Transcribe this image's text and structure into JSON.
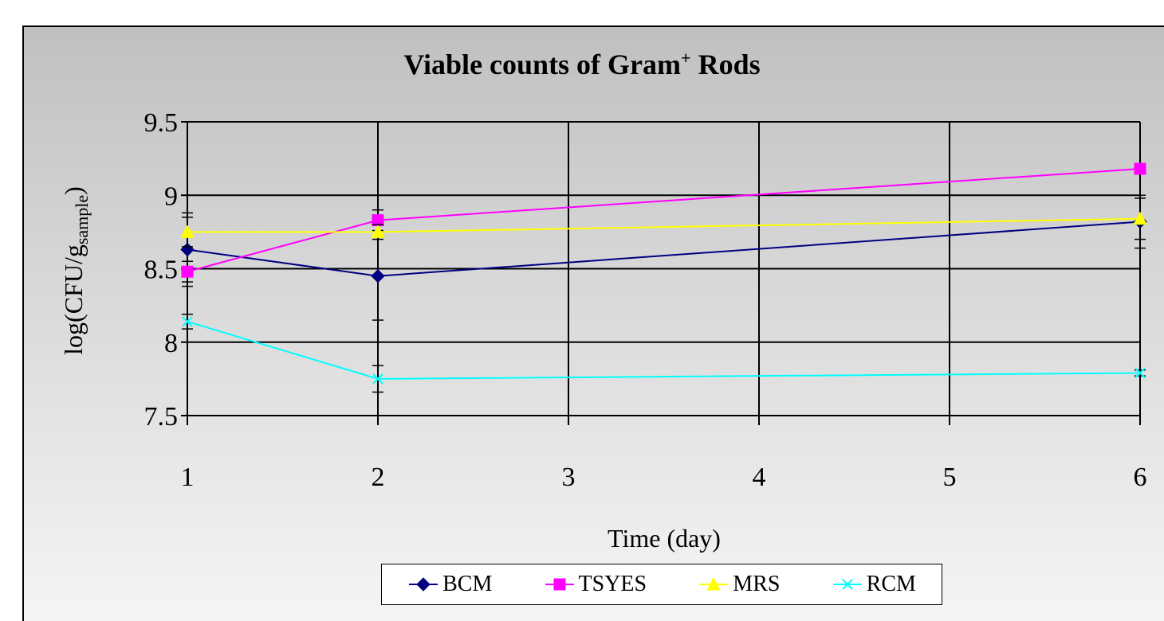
{
  "chart_data": {
    "type": "line",
    "title": "Viable counts of Gram",
    "title_sup": "+",
    "title_rest": " Rods",
    "xlabel": "Time (day)",
    "ylabel": "log(CFU/g",
    "ylabel_sub": "sample",
    "ylabel_close": ")",
    "xlim": [
      1,
      6
    ],
    "ylim": [
      7.5,
      9.5
    ],
    "x_ticks": [
      "1",
      "2",
      "3",
      "4",
      "5",
      "6"
    ],
    "y_ticks": [
      "7.5",
      "8",
      "8.5",
      "9",
      "9.5"
    ],
    "grid": true,
    "legend_position": "bottom",
    "series": [
      {
        "name": "BCM",
        "color": "#000080",
        "marker": "diamond",
        "x": [
          1,
          2,
          6
        ],
        "y": [
          8.63,
          8.45,
          8.82
        ],
        "err": [
          0.25,
          0.3,
          0.18
        ]
      },
      {
        "name": "TSYES",
        "color": "#ff00ff",
        "marker": "square",
        "x": [
          1,
          2,
          6
        ],
        "y": [
          8.48,
          8.83,
          9.18
        ],
        "err": [
          0.07,
          0.07,
          0.03
        ]
      },
      {
        "name": "MRS",
        "color": "#ffff00",
        "marker": "triangle",
        "x": [
          1,
          2,
          6
        ],
        "y": [
          8.75,
          8.75,
          8.84
        ],
        "err": [
          0.1,
          0.05,
          0.14
        ]
      },
      {
        "name": "RCM",
        "color": "#00ffff",
        "marker": "x",
        "x": [
          1,
          2,
          6
        ],
        "y": [
          8.14,
          7.75,
          7.79
        ],
        "err": [
          0.05,
          0.09,
          0.02
        ]
      }
    ]
  }
}
